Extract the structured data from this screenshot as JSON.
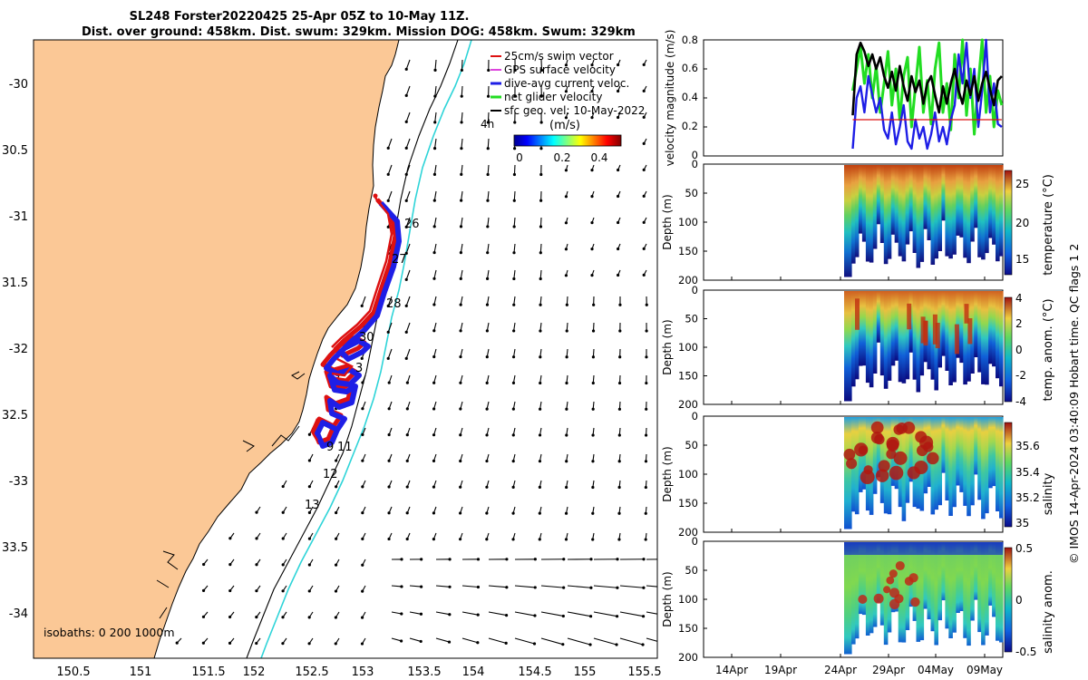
{
  "header": {
    "title_line1": "SL248 Forster20220425 25-Apr 05Z to 10-May 11Z.",
    "title_line2": "Dist. over ground: 458km. Dist. swum: 329km. Mission DOG: 458km. Swum: 329km"
  },
  "credit": "© IMOS 14-Apr-2024 03:40:09 Hobart time. QC flags 1  2",
  "colors": {
    "land": "#fbc896",
    "glider_red": "#dd1111",
    "glider_blue": "#1e1ee6",
    "net_green": "#22dd22",
    "isobath_cyan": "#2ed4d8",
    "magenta": "#dd44dd"
  },
  "map": {
    "lon_ticks": [
      "150.5",
      "151",
      "151.5",
      "152",
      "152.5",
      "153",
      "153.5",
      "154",
      "154.5",
      "155",
      "155.5"
    ],
    "lat_ticks": [
      "-30",
      "30.5",
      "-31",
      "31.5",
      "-32",
      "32.5",
      "-33",
      "33.5",
      "-34"
    ],
    "legend": [
      {
        "label": "25cm/s swim vector",
        "color": "#dd1111"
      },
      {
        "label": "GPS surface velocity",
        "color": "#dd44dd"
      },
      {
        "label": "dive-avg current veloc.",
        "color": "#1e1ee6"
      },
      {
        "label": "net glider velocity",
        "color": "#22dd22"
      },
      {
        "label": "sfc geo. vel: 10-May-2022",
        "color": "#000000"
      }
    ],
    "colorbar": {
      "unit_label": "(m/s)",
      "tick_labels": [
        "0",
        "0.2",
        "0.4"
      ],
      "range": [
        0,
        0.5
      ]
    },
    "time_scale_label": "4h",
    "isobath_text": "isobaths: 0   200  1000m",
    "day_labels": [
      "26",
      "27",
      "28",
      "30",
      "3",
      "9",
      "11",
      "12",
      "13"
    ]
  },
  "chart_data": [
    {
      "type": "line",
      "title": "",
      "ylabel": "velocity magnitude (m/s)",
      "ylim": [
        0,
        0.8
      ],
      "y_ticks": [
        "0",
        "0.2",
        "0.4",
        "0.6",
        "0.8"
      ],
      "xlim": [
        10,
        40.5
      ],
      "x_ticks_days": [
        14,
        19,
        24,
        29,
        34,
        39
      ],
      "series": [
        {
          "name": "sfc geo. vel",
          "color": "#000000",
          "x": [
            25.2,
            25.6,
            26,
            26.4,
            26.8,
            27.2,
            27.6,
            28,
            28.4,
            28.8,
            29.2,
            29.6,
            30,
            30.4,
            30.8,
            31.2,
            31.6,
            32,
            32.4,
            32.8,
            33.2,
            33.6,
            34,
            34.4,
            34.8,
            35.2,
            35.6,
            36,
            36.4,
            36.8,
            37.2,
            37.6,
            38,
            38.4,
            38.8,
            39.2,
            39.6,
            40,
            40.4
          ],
          "y": [
            0.28,
            0.7,
            0.78,
            0.72,
            0.62,
            0.7,
            0.6,
            0.68,
            0.55,
            0.47,
            0.58,
            0.45,
            0.62,
            0.48,
            0.38,
            0.55,
            0.44,
            0.52,
            0.36,
            0.5,
            0.55,
            0.42,
            0.3,
            0.48,
            0.36,
            0.5,
            0.6,
            0.45,
            0.36,
            0.52,
            0.42,
            0.55,
            0.38,
            0.5,
            0.58,
            0.46,
            0.35,
            0.52,
            0.55
          ]
        },
        {
          "name": "net glider velocity",
          "color": "#22dd22",
          "x": [
            25.2,
            25.6,
            26,
            26.4,
            26.8,
            27.2,
            27.6,
            28,
            28.4,
            28.8,
            29.2,
            29.6,
            30,
            30.4,
            30.8,
            31.2,
            31.6,
            32,
            32.4,
            32.8,
            33.2,
            33.6,
            34,
            34.4,
            34.8,
            35.2,
            35.6,
            36,
            36.4,
            36.8,
            37.2,
            37.6,
            38,
            38.4,
            38.8,
            39.2,
            39.6,
            40,
            40.4
          ],
          "y": [
            0.45,
            0.6,
            0.75,
            0.5,
            0.7,
            0.4,
            0.62,
            0.3,
            0.5,
            0.72,
            0.35,
            0.6,
            0.25,
            0.55,
            0.68,
            0.2,
            0.48,
            0.75,
            0.3,
            0.52,
            0.22,
            0.6,
            0.78,
            0.3,
            0.5,
            0.18,
            0.7,
            0.4,
            0.8,
            0.28,
            0.6,
            0.15,
            0.5,
            0.8,
            0.3,
            0.55,
            0.2,
            0.45,
            0.35
          ]
        },
        {
          "name": "dive-avg current veloc.",
          "color": "#1e1ee6",
          "x": [
            25.2,
            25.6,
            26,
            26.4,
            26.8,
            27.2,
            27.6,
            28,
            28.4,
            28.8,
            29.2,
            29.6,
            30,
            30.4,
            30.8,
            31.2,
            31.6,
            32,
            32.4,
            32.8,
            33.2,
            33.6,
            34,
            34.4,
            34.8,
            35.2,
            35.6,
            36,
            36.4,
            36.8,
            37.2,
            37.6,
            38,
            38.4,
            38.8,
            39.2,
            39.6,
            40,
            40.4
          ],
          "y": [
            0.05,
            0.4,
            0.48,
            0.3,
            0.55,
            0.42,
            0.3,
            0.4,
            0.18,
            0.12,
            0.3,
            0.08,
            0.2,
            0.35,
            0.1,
            0.05,
            0.25,
            0.12,
            0.2,
            0.05,
            0.15,
            0.3,
            0.1,
            0.2,
            0.08,
            0.25,
            0.35,
            0.7,
            0.5,
            0.78,
            0.4,
            0.6,
            0.2,
            0.45,
            0.8,
            0.3,
            0.5,
            0.22,
            0.2
          ]
        },
        {
          "name": "25cm/s swim vector",
          "color": "#dd1111",
          "x": [
            25.2,
            27,
            29,
            31,
            33,
            35,
            37,
            39,
            40.4
          ],
          "y": [
            0.25,
            0.25,
            0.25,
            0.25,
            0.25,
            0.25,
            0.25,
            0.25,
            0.25
          ]
        }
      ]
    },
    {
      "type": "heatmap",
      "variable": "temperature (°C)",
      "ylabel": "Depth (m)",
      "y_ticks": [
        "0",
        "50",
        "100",
        "150",
        "200"
      ],
      "colorbar_ticks": [
        "15",
        "20",
        "25"
      ],
      "colorbar_range": [
        12,
        27
      ]
    },
    {
      "type": "heatmap",
      "variable": "temp. anom. (°C)",
      "ylabel": "Depth (m)",
      "y_ticks": [
        "0",
        "50",
        "100",
        "150",
        "200"
      ],
      "colorbar_ticks": [
        "-4",
        "-2",
        "0",
        "2",
        "4"
      ],
      "colorbar_range": [
        -4,
        4
      ]
    },
    {
      "type": "heatmap",
      "variable": "salinity",
      "ylabel": "Depth (m)",
      "y_ticks": [
        "0",
        "50",
        "100",
        "150",
        "200"
      ],
      "colorbar_ticks": [
        "35",
        "35.2",
        "35.4",
        "35.6"
      ],
      "colorbar_range": [
        34.95,
        35.75
      ]
    },
    {
      "type": "heatmap",
      "variable": "salinity anom.",
      "ylabel": "Depth (m)",
      "y_ticks": [
        "0",
        "50",
        "100",
        "150",
        "200"
      ],
      "colorbar_ticks": [
        "-0.5",
        "0",
        "0.5"
      ],
      "colorbar_range": [
        -0.5,
        0.5
      ]
    }
  ],
  "time_axis": {
    "labels": [
      "14Apr",
      "19Apr",
      "24Apr",
      "29Apr",
      "04May",
      "09May"
    ]
  }
}
